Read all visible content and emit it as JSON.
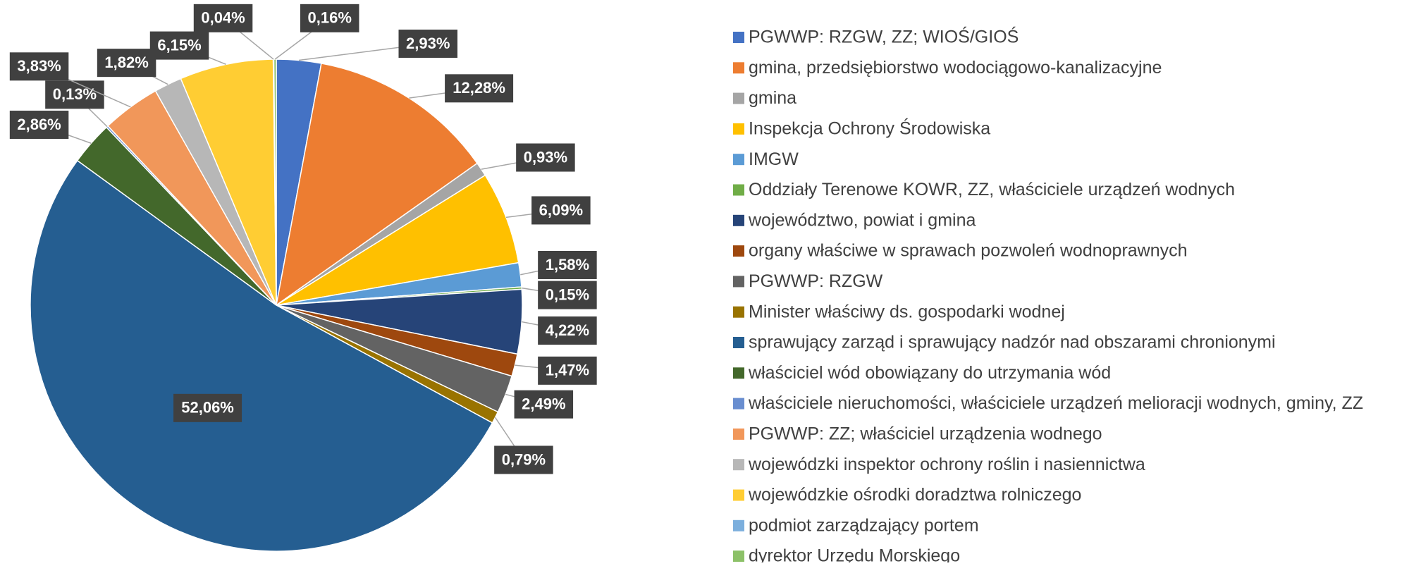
{
  "chart_data": {
    "type": "pie",
    "categories": [
      "PGWWP: RZGW, ZZ; WIOŚ/GIOŚ",
      "gmina, przedsiębiorstwo wodociągowo-kanalizacyjne",
      "gmina",
      "Inspekcja Ochrony Środowiska",
      "IMGW",
      "Oddziały Terenowe KOWR, ZZ, właściciele urządzeń wodnych",
      "województwo, powiat i gmina",
      "organy właściwe w sprawach pozwoleń wodnoprawnych",
      "PGWWP: RZGW",
      "Minister właściwy ds. gospodarki wodnej",
      "sprawujący zarząd i sprawujący nadzór nad obszarami chronionymi",
      "właściciel wód obowiązany do utrzymania wód",
      "właściciele nieruchomości, właściciele urządzeń melioracji wodnych, gminy, ZZ",
      "PGWWP: ZZ; właściciel urządzenia wodnego",
      "wojewódzki inspektor ochrony roślin i nasiennictwa",
      "wojewódzkie ośrodki doradztwa rolniczego",
      "podmiot zarządzający portem",
      "dyrektor Urzędu Morskiego"
    ],
    "values": [
      2.93,
      12.28,
      0.93,
      6.09,
      1.58,
      0.15,
      4.22,
      1.47,
      2.49,
      0.79,
      52.06,
      2.86,
      0.13,
      3.83,
      1.82,
      6.15,
      0.04,
      0.16
    ],
    "value_labels": [
      "2,93%",
      "12,28%",
      "0,93%",
      "6,09%",
      "1,58%",
      "0,15%",
      "4,22%",
      "1,47%",
      "2,49%",
      "0,79%",
      "52,06%",
      "2,86%",
      "0,13%",
      "3,83%",
      "1,82%",
      "6,15%",
      "0,04%",
      "0,16%"
    ],
    "colors": [
      "#4472c4",
      "#ed7d31",
      "#a5a5a5",
      "#ffc000",
      "#5b9bd5",
      "#70ad47",
      "#264478",
      "#9e480e",
      "#636363",
      "#997300",
      "#255e91",
      "#43682b",
      "#698ed0",
      "#f1975a",
      "#b7b7b7",
      "#ffcd33",
      "#7cafdd",
      "#8cc168"
    ],
    "legend": "right"
  }
}
